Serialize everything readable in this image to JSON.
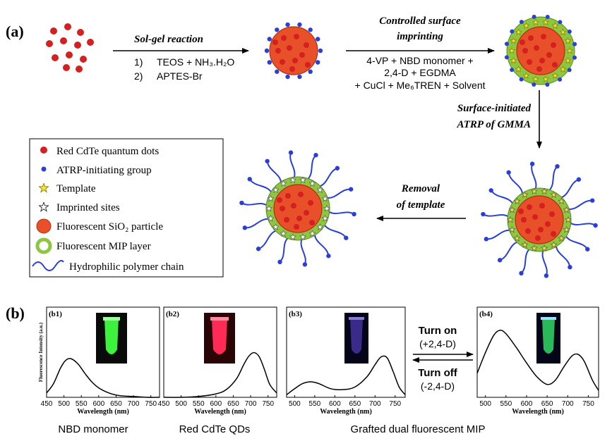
{
  "panel_a": {
    "label": "(a)",
    "step1": {
      "title": "Sol-gel reaction",
      "line1_num": "1)",
      "line1": "TEOS + NH₃.H₂O",
      "line2_num": "2)",
      "line2": "APTES-Br"
    },
    "step2": {
      "title_line1": "Controlled surface",
      "title_line2": "imprinting",
      "line1": "4-VP + NBD monomer +",
      "line2": "2,4-D + EGDMA",
      "line3": "+ CuCl + Me₆TREN + Solvent"
    },
    "step3": {
      "title_line1": "Surface-initiated",
      "title_line2": "ATRP of GMMA"
    },
    "step4": {
      "title_line1": "Removal",
      "title_line2": "of template"
    },
    "legend": [
      {
        "icon": "red-dot",
        "label": "Red CdTe quantum  dots"
      },
      {
        "icon": "blue-dot",
        "label": "ATRP-initiating group"
      },
      {
        "icon": "yellow-star",
        "label": "Template"
      },
      {
        "icon": "white-star",
        "label": "Imprinted sites"
      },
      {
        "icon": "orange-circle",
        "label": "Fluorescent SiO₂ particle"
      },
      {
        "icon": "green-ring",
        "label": "Fluorescent MIP layer"
      },
      {
        "icon": "blue-wave",
        "label": "Hydrophilic polymer chain"
      }
    ]
  },
  "panel_b": {
    "label": "(b)",
    "ylabel": "Fluorescence Intensity (a.u.)",
    "xlabel": "Wavelength (nm)",
    "turn_on": "Turn on",
    "turn_on_sub": "(+2,4-D)",
    "turn_off": "Turn off",
    "turn_off_sub": "(-2,4-D)",
    "caption_b1": "NBD monomer",
    "caption_b2": "Red CdTe QDs",
    "caption_b3": "Grafted dual fluorescent MIP"
  },
  "colors": {
    "particle": "#e8502a",
    "dot": "#d42020",
    "initiator": "#2a3fd6",
    "mip_layer": "#8dc63f",
    "template": "#f5e23a",
    "chain": "#2a3fd6"
  },
  "chart_data": [
    {
      "type": "line",
      "title": "(b1)",
      "xlabel": "Wavelength (nm)",
      "ylabel": "Fluorescence Intensity (a.u.)",
      "xticks": [
        "450",
        "500",
        "550",
        "600",
        "650",
        "700",
        "750"
      ],
      "xlim": [
        450,
        775
      ],
      "ylim": [
        0,
        1
      ],
      "x": [
        450,
        470,
        490,
        505,
        520,
        540,
        560,
        580,
        600,
        630,
        660,
        700,
        740,
        775
      ],
      "values": [
        0.05,
        0.16,
        0.34,
        0.43,
        0.45,
        0.39,
        0.28,
        0.18,
        0.11,
        0.05,
        0.02,
        0.01,
        0.0,
        0.0
      ]
    },
    {
      "type": "line",
      "title": "(b2)",
      "xlabel": "Wavelength (nm)",
      "ylabel": "Fluorescence Intensity (a.u.)",
      "xticks": [
        "450",
        "500",
        "550",
        "600",
        "650",
        "700",
        "750"
      ],
      "xlim": [
        450,
        775
      ],
      "ylim": [
        0,
        1
      ],
      "x": [
        450,
        500,
        550,
        600,
        630,
        660,
        680,
        695,
        710,
        725,
        740,
        755,
        775
      ],
      "values": [
        0.0,
        0.0,
        0.01,
        0.04,
        0.09,
        0.22,
        0.38,
        0.48,
        0.52,
        0.47,
        0.32,
        0.15,
        0.05
      ]
    },
    {
      "type": "line",
      "title": "(b3)",
      "xlabel": "Wavelength (nm)",
      "ylabel": "Fluorescence Intensity (a.u.)",
      "xticks": [
        "500",
        "550",
        "600",
        "650",
        "700",
        "750"
      ],
      "xlim": [
        480,
        775
      ],
      "ylim": [
        0,
        1
      ],
      "x": [
        480,
        500,
        520,
        540,
        560,
        590,
        620,
        650,
        680,
        700,
        715,
        730,
        745,
        760,
        775
      ],
      "values": [
        0.03,
        0.1,
        0.16,
        0.18,
        0.16,
        0.1,
        0.09,
        0.12,
        0.24,
        0.38,
        0.47,
        0.46,
        0.3,
        0.12,
        0.03
      ]
    },
    {
      "type": "line",
      "title": "(b4)",
      "xlabel": "Wavelength (nm)",
      "ylabel": "Fluorescence Intensity (a.u.)",
      "xticks": [
        "500",
        "550",
        "600",
        "650",
        "700",
        "750"
      ],
      "xlim": [
        480,
        775
      ],
      "ylim": [
        0,
        1
      ],
      "x": [
        480,
        500,
        520,
        535,
        550,
        575,
        600,
        625,
        650,
        670,
        690,
        710,
        725,
        740,
        760,
        775
      ],
      "values": [
        0.28,
        0.52,
        0.72,
        0.78,
        0.74,
        0.58,
        0.4,
        0.24,
        0.15,
        0.2,
        0.35,
        0.48,
        0.5,
        0.42,
        0.2,
        0.08
      ]
    }
  ]
}
